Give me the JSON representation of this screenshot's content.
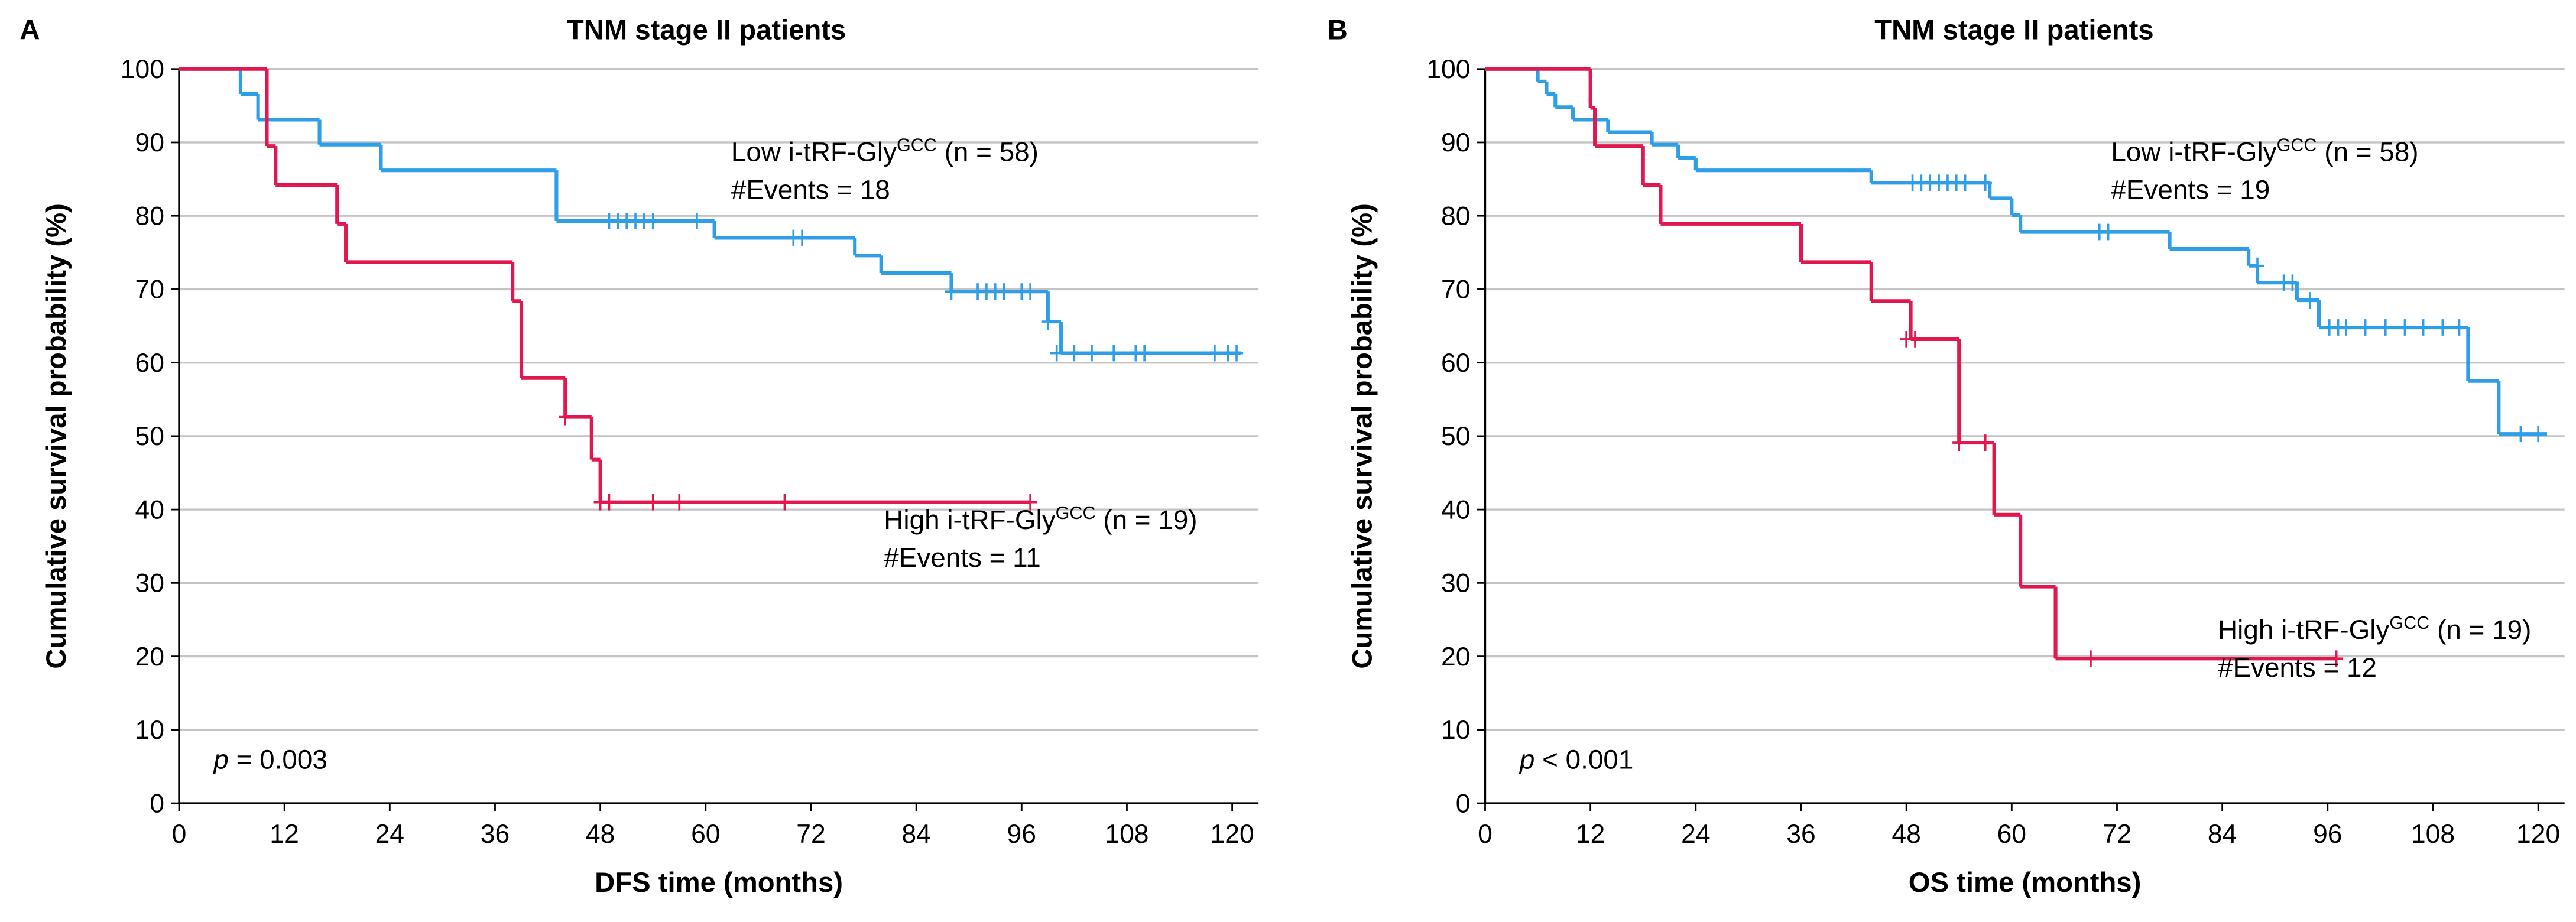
{
  "chart_data": [
    {
      "type": "line",
      "panel": "A",
      "title": "TNM stage II patients",
      "x_label": "DFS time (months)",
      "y_label": "Cumulative survival probability (%)",
      "xlim": [
        0,
        123
      ],
      "ylim": [
        0,
        100
      ],
      "xticks": [
        0,
        12,
        24,
        36,
        48,
        60,
        72,
        84,
        96,
        108,
        120
      ],
      "yticks": [
        0,
        10,
        20,
        30,
        40,
        50,
        60,
        70,
        80,
        90,
        100
      ],
      "grid": true,
      "p_label": [
        "p",
        " = 0.003"
      ],
      "series": [
        {
          "name_parts": [
            "Low i-tRF-Gly",
            "GCC",
            " (n = 58)"
          ],
          "events": "#Events = 18",
          "color": "#2e9ee6",
          "x": [
            0,
            7,
            9,
            16,
            23,
            43,
            61,
            77,
            80,
            88,
            99,
            100.5,
            121
          ],
          "values": [
            100,
            96.6,
            93.1,
            89.7,
            86.2,
            79.3,
            77.0,
            74.6,
            72.2,
            69.7,
            65.6,
            61.3,
            61.3
          ],
          "censor_x": [
            49,
            50,
            51,
            52,
            53,
            54,
            59,
            70,
            71,
            88,
            91,
            92,
            93,
            94,
            96,
            97,
            99,
            100,
            102,
            104,
            106.5,
            109,
            110,
            118,
            119.5,
            120.5
          ],
          "censor_values": [
            79.3,
            79.3,
            79.3,
            79.3,
            79.3,
            79.3,
            79.3,
            77.0,
            77.0,
            69.7,
            69.7,
            69.7,
            69.7,
            69.7,
            69.7,
            69.7,
            65.6,
            61.3,
            61.3,
            61.3,
            61.3,
            61.3,
            61.3,
            61.3,
            61.3,
            61.3
          ]
        },
        {
          "name_parts": [
            "High i-tRF-Gly",
            "GCC",
            " (n = 19)"
          ],
          "events": "#Events = 11",
          "color": "#e0184f",
          "x": [
            0,
            10,
            11,
            18,
            19,
            38,
            39,
            44,
            47,
            48,
            97
          ],
          "values": [
            100,
            89.5,
            84.2,
            78.9,
            73.7,
            68.4,
            57.9,
            52.6,
            46.8,
            41.0,
            41.0
          ],
          "censor_x": [
            44,
            48,
            49,
            54,
            57,
            69,
            97
          ],
          "censor_values": [
            52.6,
            41.0,
            41.0,
            41.0,
            41.0,
            41.0,
            41.0
          ]
        }
      ]
    },
    {
      "type": "line",
      "panel": "B",
      "title": "TNM stage II patients",
      "x_label": "OS time (months)",
      "y_label": "Cumulative survival probability (%)",
      "xlim": [
        0,
        123
      ],
      "ylim": [
        0,
        100
      ],
      "xticks": [
        0,
        12,
        24,
        36,
        48,
        60,
        72,
        84,
        96,
        108,
        120
      ],
      "yticks": [
        0,
        10,
        20,
        30,
        40,
        50,
        60,
        70,
        80,
        90,
        100
      ],
      "grid": true,
      "p_label": [
        "p",
        " < 0.001"
      ],
      "series": [
        {
          "name_parts": [
            "Low i-tRF-Gly",
            "GCC",
            " (n = 58)"
          ],
          "events": "#Events = 19",
          "color": "#2e9ee6",
          "x": [
            0,
            6,
            7,
            8,
            10,
            14,
            19,
            22,
            24,
            44,
            57.5,
            60,
            61,
            78,
            87,
            88,
            92.5,
            95,
            112,
            115.5,
            121
          ],
          "values": [
            100,
            98.3,
            96.6,
            94.8,
            93.1,
            91.4,
            89.7,
            87.9,
            86.2,
            84.5,
            82.4,
            80.1,
            77.8,
            75.5,
            73.2,
            70.9,
            68.5,
            64.8,
            57.5,
            50.3,
            50.3
          ],
          "censor_x": [
            48.7,
            49.7,
            50.7,
            51.7,
            52.7,
            53.7,
            54.7,
            57,
            70,
            71,
            88,
            91,
            92,
            94,
            96.2,
            97.2,
            98.1,
            100.3,
            102.6,
            104.8,
            106.9,
            109.1,
            111,
            118,
            120
          ],
          "censor_values": [
            84.5,
            84.5,
            84.5,
            84.5,
            84.5,
            84.5,
            84.5,
            84.5,
            77.8,
            77.8,
            73.2,
            70.9,
            70.9,
            68.5,
            64.8,
            64.8,
            64.8,
            64.8,
            64.8,
            64.8,
            64.8,
            64.8,
            64.8,
            50.3,
            50.3
          ]
        },
        {
          "name_parts": [
            "High i-tRF-Gly",
            "GCC",
            " (n = 19)"
          ],
          "events": "#Events = 12",
          "color": "#e0184f",
          "x": [
            0,
            12,
            12.5,
            18,
            20,
            36,
            44,
            48.5,
            54,
            58,
            61,
            65,
            97
          ],
          "values": [
            100,
            94.7,
            89.5,
            84.2,
            78.9,
            73.7,
            68.4,
            63.2,
            49.1,
            39.3,
            29.5,
            19.7,
            19.7
          ],
          "censor_x": [
            48,
            49,
            54,
            57,
            69,
            97
          ],
          "censor_values": [
            63.2,
            63.2,
            49.1,
            49.1,
            19.7,
            19.7
          ]
        }
      ]
    }
  ]
}
